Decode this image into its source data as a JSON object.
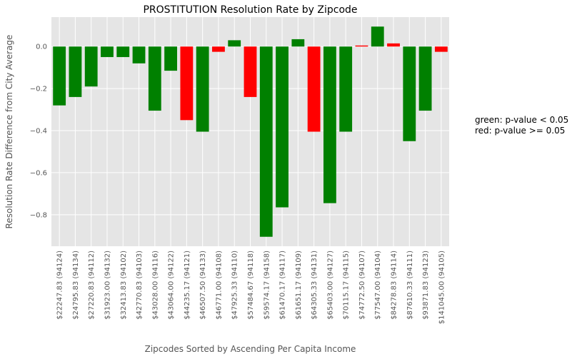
{
  "chart_data": {
    "type": "bar",
    "title": "PROSTITUTION Resolution Rate by Zipcode",
    "xlabel": "Zipcodes Sorted by Ascending Per Capita Income",
    "ylabel": "Resolution Rate Difference from City Average",
    "ylim": [
      -0.95,
      0.14
    ],
    "yticks": [
      0.0,
      -0.2,
      -0.4,
      -0.6,
      -0.8
    ],
    "ytick_labels": [
      "0.0",
      "−0.2",
      "−0.4",
      "−0.6",
      "−0.8"
    ],
    "grid": true,
    "background_color": "#e5e5e5",
    "grid_color": "#ffffff",
    "colors": {
      "significant": "#008000",
      "not_significant": "#ff0000"
    },
    "categories": [
      "$22247.83  (94124)",
      "$24795.83  (94134)",
      "$27220.83  (94112)",
      "$31923.00  (94132)",
      "$32413.83  (94102)",
      "$42770.83  (94103)",
      "$43028.00  (94116)",
      "$43064.00  (94122)",
      "$44235.17  (94121)",
      "$46507.50  (94133)",
      "$46771.00  (94108)",
      "$47925.33  (94110)",
      "$57484.67  (94118)",
      "$59574.17  (94158)",
      "$61470.17  (94117)",
      "$61651.17  (94109)",
      "$64305.33  (94131)",
      "$65403.00  (94127)",
      "$70115.17  (94115)",
      "$74772.50  (94107)",
      "$77547.00  (94104)",
      "$84278.83  (94114)",
      "$87610.33  (94111)",
      "$93871.83  (94123)",
      "$141045.00  (94105)"
    ],
    "values": [
      -0.28,
      -0.24,
      -0.19,
      -0.05,
      -0.05,
      -0.08,
      -0.305,
      -0.115,
      -0.35,
      -0.405,
      -0.025,
      0.03,
      -0.24,
      -0.905,
      -0.765,
      0.035,
      -0.405,
      -0.745,
      -0.405,
      0.005,
      0.095,
      0.015,
      -0.45,
      -0.305,
      -0.025
    ],
    "significant": [
      true,
      true,
      true,
      true,
      true,
      true,
      true,
      true,
      false,
      true,
      false,
      true,
      false,
      true,
      true,
      true,
      false,
      true,
      true,
      false,
      true,
      false,
      true,
      true,
      false
    ]
  },
  "legend_note": {
    "line1": "green: p-value < 0.05",
    "line2": "red: p-value >= 0.05"
  }
}
